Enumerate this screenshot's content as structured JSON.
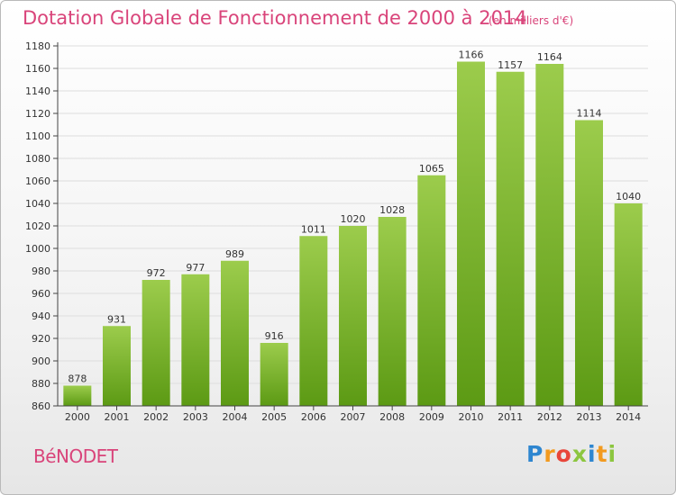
{
  "header": {
    "title": "Dotation Globale de Fonctionnement de 2000 à 2014",
    "unit": "(en milliers d'€)"
  },
  "footer": {
    "place": "BéNODET",
    "logo": {
      "text": "Proxiti",
      "letters": [
        {
          "ch": "P",
          "color": "#2e86d0"
        },
        {
          "ch": "r",
          "color": "#f29a1f"
        },
        {
          "ch": "o",
          "color": "#e8463a"
        },
        {
          "ch": "x",
          "color": "#8cc63f"
        },
        {
          "ch": "i",
          "color": "#2e86d0"
        },
        {
          "ch": "t",
          "color": "#f29a1f"
        },
        {
          "ch": "i",
          "color": "#8cc63f"
        }
      ]
    }
  },
  "colors": {
    "accent": "#d9447a",
    "bar_light": "#9ccc4c",
    "bar_dark": "#5c9a14",
    "grid": "#dddddd",
    "axis": "#444444"
  },
  "chart_data": {
    "type": "bar",
    "title": "Dotation Globale de Fonctionnement de 2000 à 2014",
    "subtitle": "(en milliers d'€)",
    "xlabel": "",
    "ylabel": "",
    "categories": [
      "2000",
      "2001",
      "2002",
      "2003",
      "2004",
      "2005",
      "2006",
      "2007",
      "2008",
      "2009",
      "2010",
      "2011",
      "2012",
      "2013",
      "2014"
    ],
    "values": [
      878,
      931,
      972,
      977,
      989,
      916,
      1011,
      1020,
      1028,
      1065,
      1166,
      1157,
      1164,
      1114,
      1040
    ],
    "ylim": [
      860,
      1180
    ],
    "ytick_step": 20,
    "grid": true,
    "legend": "none"
  }
}
